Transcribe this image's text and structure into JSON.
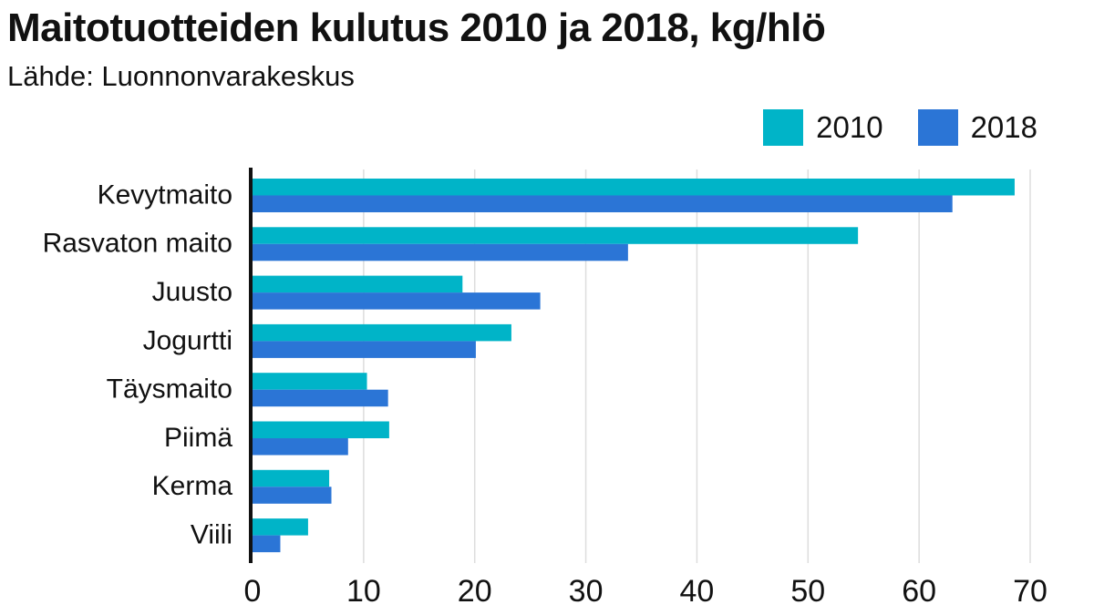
{
  "title": "Maitotuotteiden kulutus 2010 ja 2018, kg/hlö",
  "subtitle": "Lähde: Luonnonvarakeskus",
  "colors": {
    "2010": "#00b4c8",
    "2018": "#2b75d6",
    "grid": "#dddddd",
    "axis": "#111111"
  },
  "chart_data": {
    "type": "bar",
    "orientation": "horizontal",
    "title": "Maitotuotteiden kulutus 2010 ja 2018, kg/hlö",
    "subtitle": "Lähde: Luonnonvarakeskus",
    "categories": [
      "Kevytmaito",
      "Rasvaton maito",
      "Juusto",
      "Jogurtti",
      "Täysmaito",
      "Piimä",
      "Kerma",
      "Viili"
    ],
    "series": [
      {
        "name": "2010",
        "values": [
          68.6,
          54.5,
          18.9,
          23.3,
          10.3,
          12.3,
          6.9,
          5.0
        ]
      },
      {
        "name": "2018",
        "values": [
          63.0,
          33.8,
          25.9,
          20.1,
          12.2,
          8.6,
          7.1,
          2.5
        ]
      }
    ],
    "xlim": [
      0,
      70
    ],
    "xticks": [
      0,
      10,
      20,
      30,
      40,
      50,
      60,
      70
    ],
    "grid": true,
    "legend_position": "top-right"
  }
}
